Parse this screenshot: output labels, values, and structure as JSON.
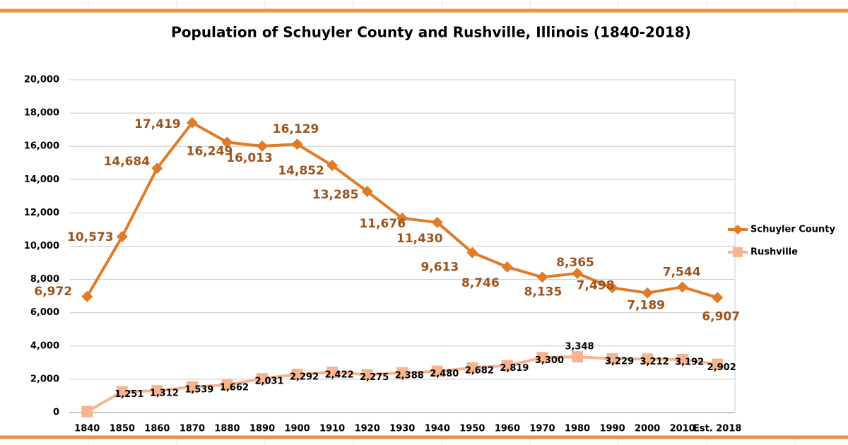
{
  "chart_data": {
    "type": "line",
    "title": "Population of Schuyler County and Rushville, Illinois (1840-2018)",
    "categories": [
      "1840",
      "1850",
      "1860",
      "1870",
      "1880",
      "1890",
      "1900",
      "1910",
      "1920",
      "1930",
      "1940",
      "1950",
      "1960",
      "1970",
      "1980",
      "1990",
      "2000",
      "2010",
      "Est. 2018"
    ],
    "series": [
      {
        "name": "Schuyler County",
        "color": "#e07b28",
        "marker": "diamond",
        "label_color": "#a0521a",
        "values": [
          6972,
          10573,
          14684,
          17419,
          16249,
          16013,
          16129,
          14852,
          13285,
          11676,
          11430,
          9613,
          8746,
          8135,
          8365,
          7498,
          7189,
          7544,
          6907
        ],
        "value_labels": [
          "6,972",
          "10,573",
          "14,684",
          "17,419",
          "16,249",
          "16,013",
          "16,129",
          "14,852",
          "13,285",
          "11,676",
          "11,430",
          "9,613",
          "8,746",
          "8,135",
          "8,365",
          "7,498",
          "7,189",
          "7,544",
          "6,907"
        ]
      },
      {
        "name": "Rushville",
        "color": "#f7b48f",
        "marker": "square",
        "label_color": "#000000",
        "values": [
          50,
          1251,
          1312,
          1539,
          1662,
          2031,
          2292,
          2422,
          2275,
          2388,
          2480,
          2682,
          2819,
          3300,
          3348,
          3229,
          3212,
          3192,
          2902
        ],
        "value_labels": [
          null,
          "1,251",
          "1,312",
          "1,539",
          "1,662",
          "2,031",
          "2,292",
          "2,422",
          "2,275",
          "2,388",
          "2,480",
          "2,682",
          "2,819",
          "3,300",
          "3,348",
          "3,229",
          "3,212",
          "3,192",
          "2,902"
        ]
      }
    ],
    "ylim": [
      0,
      20000
    ],
    "yticks": [
      {
        "value": 0,
        "label": "0"
      },
      {
        "value": 2000,
        "label": "2,000"
      },
      {
        "value": 4000,
        "label": "4,000"
      },
      {
        "value": 6000,
        "label": "6,000"
      },
      {
        "value": 8000,
        "label": "8,000"
      },
      {
        "value": 10000,
        "label": "10,000"
      },
      {
        "value": 12000,
        "label": "12,000"
      },
      {
        "value": 14000,
        "label": "14,000"
      },
      {
        "value": 16000,
        "label": "16,000"
      },
      {
        "value": 18000,
        "label": "18,000"
      },
      {
        "value": 20000,
        "label": "20,000"
      }
    ],
    "grid": true,
    "legend": "right"
  }
}
